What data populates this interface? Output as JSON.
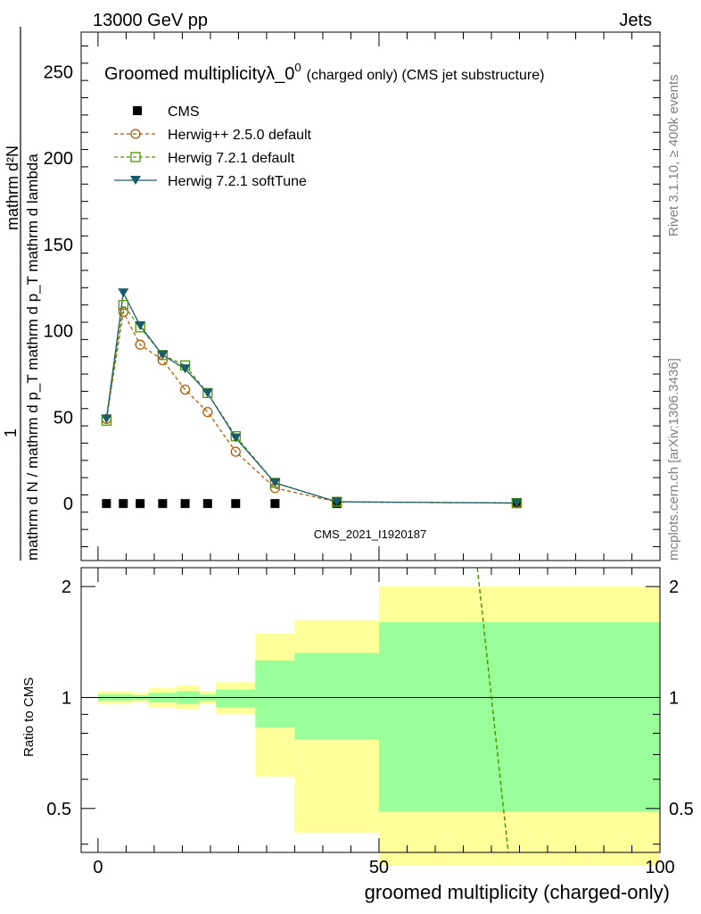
{
  "header": {
    "left": "13000 GeV pp",
    "right": "Jets"
  },
  "side_labels": {
    "rivet": "Rivet 3.1.10, ≥ 400k events",
    "mcplots": "mcplots.cern.ch [arXiv:1306.3436]"
  },
  "watermark": "CMS_2021_I1920187",
  "title": {
    "main": "Groomed multiplicityλ_0",
    "sup": "0",
    "sub": "(charged only) (CMS jet substructure)"
  },
  "colors": {
    "cms": "#000000",
    "herwigpp": "#b35900",
    "herwig721": "#4d9900",
    "softtune": "#1a5c6b",
    "band_inner": "#99ff99",
    "band_outer": "#ffff99"
  },
  "chart_data": [
    {
      "type": "line",
      "panel": "main",
      "ylabel_numerator": "1",
      "ylabel_denominator": "mathrm d N / mathrm d p_T mathrm d p_T mathrm d lambda",
      "ylabel_top": "mathrm d²N",
      "xlim": [
        -3,
        100
      ],
      "ylim": [
        -33,
        273
      ],
      "yticks": [
        0,
        50,
        100,
        150,
        200,
        250
      ],
      "legend_position": "top-left",
      "series": [
        {
          "name": "CMS",
          "marker": "square",
          "x": [
            1.5,
            4.5,
            7.5,
            11.5,
            15.5,
            19.5,
            24.5,
            31.5,
            42.5,
            74.5
          ],
          "y": [
            0,
            0,
            0,
            0,
            0,
            0,
            0,
            0,
            0,
            0
          ]
        },
        {
          "name": "Herwig++ 2.5.0 default",
          "marker": "open-circle",
          "x": [
            1.5,
            4.5,
            7.5,
            11.5,
            15.5,
            19.5,
            24.5,
            31.5,
            42.5,
            74.5
          ],
          "y": [
            49,
            111,
            92,
            83,
            66,
            53,
            30,
            9,
            1,
            0.3
          ]
        },
        {
          "name": "Herwig 7.2.1 default",
          "marker": "open-square",
          "x": [
            1.5,
            4.5,
            7.5,
            11.5,
            15.5,
            19.5,
            24.5,
            31.5,
            42.5,
            74.5
          ],
          "y": [
            48,
            115,
            102,
            86,
            80,
            64,
            39,
            12,
            1,
            0.3
          ]
        },
        {
          "name": "Herwig 7.2.1 softTune",
          "marker": "filled-triangle-down",
          "x": [
            1.5,
            4.5,
            7.5,
            11.5,
            15.5,
            19.5,
            24.5,
            31.5,
            42.5,
            74.5
          ],
          "y": [
            49,
            122,
            103,
            86,
            78,
            64,
            38,
            12,
            1,
            0.3
          ]
        }
      ]
    },
    {
      "type": "line",
      "panel": "ratio",
      "ylabel": "Ratio to CMS",
      "xlabel": "groomed multiplicity (charged-only)",
      "xlim": [
        -3,
        100
      ],
      "ylim": [
        0.38,
        2.25
      ],
      "xticks": [
        0,
        50,
        100
      ],
      "yticks": [
        0.5,
        1,
        2
      ],
      "bins": [
        {
          "lo": 0,
          "hi": 3,
          "inner": [
            0.98,
            1.02
          ],
          "outer": [
            0.96,
            1.04
          ]
        },
        {
          "lo": 3,
          "hi": 6,
          "inner": [
            0.98,
            1.02
          ],
          "outer": [
            0.96,
            1.04
          ]
        },
        {
          "lo": 6,
          "hi": 9,
          "inner": [
            0.985,
            1.015
          ],
          "outer": [
            0.97,
            1.03
          ]
        },
        {
          "lo": 9,
          "hi": 14,
          "inner": [
            0.97,
            1.03
          ],
          "outer": [
            0.94,
            1.06
          ]
        },
        {
          "lo": 14,
          "hi": 18,
          "inner": [
            0.96,
            1.04
          ],
          "outer": [
            0.93,
            1.08
          ]
        },
        {
          "lo": 18,
          "hi": 21,
          "inner": [
            0.98,
            1.02
          ],
          "outer": [
            0.96,
            1.04
          ]
        },
        {
          "lo": 21,
          "hi": 28,
          "inner": [
            0.94,
            1.05
          ],
          "outer": [
            0.9,
            1.1
          ]
        },
        {
          "lo": 28,
          "hi": 35,
          "inner": [
            0.83,
            1.26
          ],
          "outer": [
            0.61,
            1.49
          ]
        },
        {
          "lo": 35,
          "hi": 50,
          "inner": [
            0.77,
            1.32
          ],
          "outer": [
            0.43,
            1.62
          ]
        },
        {
          "lo": 50,
          "hi": 100,
          "inner": [
            0.49,
            1.6
          ],
          "outer": [
            0.35,
            2.0
          ]
        }
      ],
      "series": [
        {
          "name": "Herwig 7.2.1 default",
          "style": "dashed",
          "x": [
            67.5,
            73
          ],
          "y": [
            2.25,
            0.38
          ]
        }
      ]
    }
  ]
}
